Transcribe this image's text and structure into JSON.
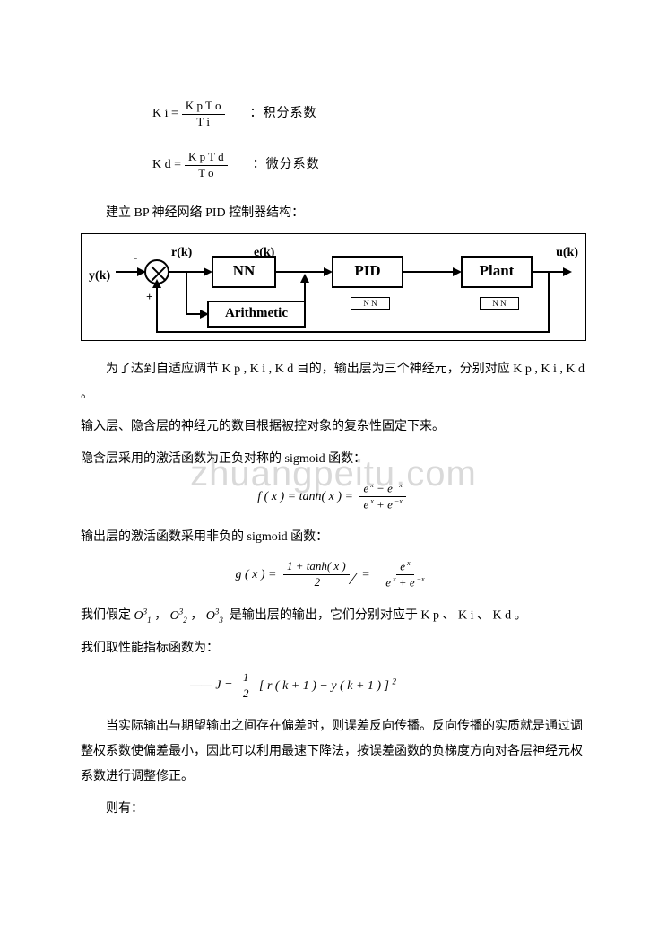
{
  "formulas": {
    "ki_left": "K i =",
    "ki_num": "K p T o",
    "ki_den": "T i",
    "ki_label": "：积分系数",
    "kd_left": "K d  =",
    "kd_num": "K p T d",
    "kd_den": "T o",
    "kd_label": "：微分系数"
  },
  "text": {
    "p1": "建立 BP 神经网络 PID 控制器结构：",
    "p2": "为了达到自适应调节 K p , K i , K d 目的，输出层为三个神经元，分别对应 K p , K i , K d 。",
    "p3": "输入层、隐含层的神经元的数目根据被控对象的复杂性固定下来。",
    "p4": "隐含层采用的激活函数为正负对称的 sigmoid 函数：",
    "p5": "输出层的激活函数采用非负的 sigmoid 函数：",
    "p6_prefix": "我们假定",
    "p6_o1": "O",
    "p6_o2": "O",
    "p6_o3": "O",
    "p6_suffix": "是输出层的输出，它们分别对应于 K p 、 K i 、 K d 。",
    "p7": "我们取性能指标函数为：",
    "p8": "当实际输出与期望输出之间存在偏差时，则误差反向传播。反向传播的实质就是通过调整权系数使偏差最小，因此可以利用最速下降法，按误差函数的负梯度方向对各层神经元权系数进行调整修正。",
    "p9": "则有："
  },
  "diagram": {
    "y": "y(k)",
    "r": "r(k)",
    "e": "e(k)",
    "u": "u(k)",
    "nn": "NN",
    "pid": "PID",
    "plant": "Plant",
    "arith": "Arithmetic",
    "small": "N N",
    "minus": "-",
    "plus": "+"
  },
  "math": {
    "fx_left": "f ( x )  =  tanh(   x )  =",
    "fx_num": "e<sup style='font-size:8px'> x</sup> − e<sup style='font-size:8px'> −x</sup>",
    "fx_den": "e<sup style='font-size:8px'> x</sup> + e<sup style='font-size:8px'> −x</sup>",
    "gx_left": "g ( x )  =",
    "gx_mid_num": "1  +  tanh(   x )",
    "gx_mid_den": "2",
    "gx_eq": "=",
    "gx_right_num": "e<sup style='font-size:8px'> x</sup>",
    "gx_right_den": "e<sup style='font-size:8px'> x</sup> + e<sup style='font-size:8px'> −x</sup>",
    "j_left": "—— J  =",
    "j_num": "1",
    "j_den": "2",
    "j_right": "[ r ( k  + 1 )  −  y ( k  + 1 ) ] <sup style='font-size:9px'>2</sup>"
  },
  "watermark": "zhuangpeitu.com"
}
